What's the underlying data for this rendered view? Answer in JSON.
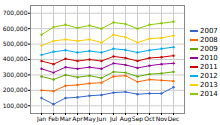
{
  "chart_data": {
    "type": "line",
    "categories": [
      "Jan",
      "Feb",
      "Mar",
      "Apr",
      "May",
      "Jun",
      "Jul",
      "Aug",
      "Sep",
      "Oct",
      "Nov",
      "Dec"
    ],
    "series": [
      {
        "name": "2007",
        "color": "#3366cc",
        "values": [
          150000,
          110000,
          150000,
          155000,
          165000,
          170000,
          185000,
          190000,
          175000,
          180000,
          180000,
          220000
        ]
      },
      {
        "name": "2008",
        "color": "#ff6600",
        "values": [
          200000,
          195000,
          230000,
          235000,
          245000,
          250000,
          290000,
          295000,
          255000,
          270000,
          265000,
          260000
        ]
      },
      {
        "name": "2009",
        "color": "#66aa00",
        "values": [
          290000,
          270000,
          300000,
          285000,
          295000,
          280000,
          320000,
          315000,
          290000,
          305000,
          310000,
          320000
        ]
      },
      {
        "name": "2010",
        "color": "#990099",
        "values": [
          340000,
          315000,
          350000,
          340000,
          350000,
          340000,
          375000,
          365000,
          345000,
          360000,
          370000,
          375000
        ]
      },
      {
        "name": "2011",
        "color": "#cc0000",
        "values": [
          390000,
          370000,
          405000,
          390000,
          400000,
          390000,
          420000,
          410000,
          390000,
          410000,
          415000,
          425000
        ]
      },
      {
        "name": "2012",
        "color": "#00aaee",
        "values": [
          430000,
          450000,
          460000,
          445000,
          455000,
          445000,
          470000,
          462000,
          445000,
          460000,
          470000,
          480000
        ]
      },
      {
        "name": "2013",
        "color": "#ffcc00",
        "values": [
          490000,
          520000,
          530000,
          520000,
          530000,
          510000,
          560000,
          545000,
          510000,
          535000,
          540000,
          555000
        ]
      },
      {
        "name": "2014",
        "color": "#88cc00",
        "values": [
          560000,
          610000,
          625000,
          605000,
          620000,
          600000,
          640000,
          630000,
          600000,
          625000,
          635000,
          645000
        ]
      }
    ],
    "ylim": [
      50000,
      750000
    ],
    "yticks": [
      {
        "value": 100000,
        "label": "100,000"
      },
      {
        "value": 200000,
        "label": "200,000"
      },
      {
        "value": 300000,
        "label": "300,000"
      },
      {
        "value": 400000,
        "label": "400,000"
      },
      {
        "value": 500000,
        "label": "500,000"
      },
      {
        "value": 600000,
        "label": "600,000"
      },
      {
        "value": 700000,
        "label": "700,000"
      }
    ],
    "grid": true,
    "legend": "right",
    "marker": "o"
  }
}
